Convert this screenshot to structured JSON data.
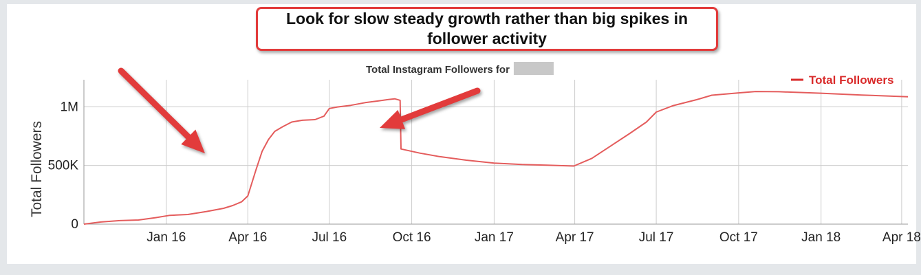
{
  "callout": {
    "text": "Look for slow steady growth rather than big spikes in follower activity"
  },
  "colors": {
    "series": "#e45c5c",
    "legend_text": "#d92a2a",
    "annotation": "#e23b3b",
    "grid": "#cccccc",
    "redaction": "#c8c8c8"
  },
  "annotations": [
    "arrow pointing to steep rise in spring 2016",
    "arrow pointing to sudden drop in September 2016"
  ],
  "chart_data": {
    "type": "line",
    "title": "Total Instagram Followers for",
    "title_redacted": true,
    "ylabel": "Total Followers",
    "xlabel": "",
    "ylim": [
      0,
      1230000
    ],
    "yticks": [
      0,
      500000,
      1000000
    ],
    "ytick_labels": [
      "0",
      "500K",
      "1M"
    ],
    "xticks": [
      "2016-01-01",
      "2016-04-01",
      "2016-07-01",
      "2016-10-01",
      "2017-01-01",
      "2017-04-01",
      "2017-07-01",
      "2017-10-01",
      "2018-01-01",
      "2018-04-01"
    ],
    "xtick_labels": [
      "Jan 16",
      "Apr 16",
      "Jul 16",
      "Oct 16",
      "Jan 17",
      "Apr 17",
      "Jul 17",
      "Oct 17",
      "Jan 18",
      "Apr 18"
    ],
    "xlim": [
      "2015-10-01",
      "2018-04-08"
    ],
    "grid": true,
    "legend_position": "top-right",
    "series": [
      {
        "name": "Total Followers",
        "points": [
          [
            "2015-10-01",
            0
          ],
          [
            "2015-10-20",
            18000
          ],
          [
            "2015-11-10",
            30000
          ],
          [
            "2015-12-01",
            35000
          ],
          [
            "2015-12-20",
            55000
          ],
          [
            "2016-01-05",
            75000
          ],
          [
            "2016-01-25",
            82000
          ],
          [
            "2016-02-15",
            108000
          ],
          [
            "2016-03-05",
            135000
          ],
          [
            "2016-03-15",
            158000
          ],
          [
            "2016-03-25",
            190000
          ],
          [
            "2016-04-01",
            240000
          ],
          [
            "2016-04-10",
            460000
          ],
          [
            "2016-04-17",
            620000
          ],
          [
            "2016-04-24",
            720000
          ],
          [
            "2016-05-01",
            790000
          ],
          [
            "2016-05-10",
            830000
          ],
          [
            "2016-05-20",
            870000
          ],
          [
            "2016-06-01",
            885000
          ],
          [
            "2016-06-15",
            890000
          ],
          [
            "2016-06-25",
            920000
          ],
          [
            "2016-07-01",
            985000
          ],
          [
            "2016-07-10",
            998000
          ],
          [
            "2016-07-25",
            1012000
          ],
          [
            "2016-08-10",
            1035000
          ],
          [
            "2016-08-25",
            1050000
          ],
          [
            "2016-09-05",
            1062000
          ],
          [
            "2016-09-12",
            1068000
          ],
          [
            "2016-09-18",
            1055000
          ],
          [
            "2016-09-19",
            640000
          ],
          [
            "2016-10-10",
            605000
          ],
          [
            "2016-11-01",
            575000
          ],
          [
            "2016-12-01",
            545000
          ],
          [
            "2017-01-01",
            520000
          ],
          [
            "2017-02-01",
            508000
          ],
          [
            "2017-03-01",
            502000
          ],
          [
            "2017-03-31",
            495000
          ],
          [
            "2017-04-20",
            560000
          ],
          [
            "2017-05-10",
            660000
          ],
          [
            "2017-06-01",
            770000
          ],
          [
            "2017-06-20",
            870000
          ],
          [
            "2017-07-01",
            955000
          ],
          [
            "2017-07-20",
            1010000
          ],
          [
            "2017-08-15",
            1060000
          ],
          [
            "2017-09-01",
            1098000
          ],
          [
            "2017-10-01",
            1118000
          ],
          [
            "2017-10-20",
            1130000
          ],
          [
            "2017-11-15",
            1128000
          ],
          [
            "2018-01-01",
            1115000
          ],
          [
            "2018-02-15",
            1100000
          ],
          [
            "2018-04-08",
            1085000
          ]
        ]
      }
    ]
  }
}
